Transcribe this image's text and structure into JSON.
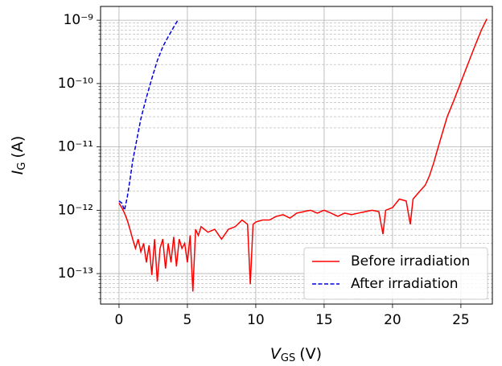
{
  "chart_data": {
    "type": "line",
    "x_label": {
      "symbol": "V",
      "subscript": "GS",
      "unit": "(V)"
    },
    "y_label": {
      "symbol": "I",
      "subscript": "G",
      "unit": "(A)"
    },
    "series": [
      {
        "name": "Before irradiation",
        "color": "#ff0000",
        "dash": "solid",
        "x": [
          0,
          0.2,
          0.4,
          0.6,
          0.8,
          1.0,
          1.2,
          1.4,
          1.6,
          1.8,
          2.0,
          2.2,
          2.4,
          2.6,
          2.8,
          3.0,
          3.2,
          3.4,
          3.6,
          3.8,
          4.0,
          4.2,
          4.4,
          4.6,
          4.8,
          5.0,
          5.2,
          5.4,
          5.6,
          5.8,
          6.0,
          6.5,
          7.0,
          7.5,
          8.0,
          8.5,
          9.0,
          9.4,
          9.6,
          9.8,
          10.0,
          10.5,
          11.0,
          11.5,
          12.0,
          12.5,
          13.0,
          13.5,
          14.0,
          14.5,
          15.0,
          15.5,
          16.0,
          16.5,
          17.0,
          17.5,
          18.0,
          18.5,
          19.0,
          19.3,
          19.5,
          20.0,
          20.5,
          21.0,
          21.3,
          21.5,
          22.0,
          22.4,
          22.7,
          23.0,
          23.5,
          24.0,
          24.5,
          25.0,
          25.5,
          26.0,
          26.5,
          26.9
        ],
        "values": [
          1.3e-12,
          1.1e-12,
          9e-13,
          7e-13,
          5e-13,
          3.5e-13,
          2.5e-13,
          3.5e-13,
          2.2e-13,
          3e-13,
          1.5e-13,
          2.8e-13,
          9.5e-14,
          3.5e-13,
          7.5e-14,
          2.5e-13,
          3.5e-13,
          1.2e-13,
          3e-13,
          1.5e-13,
          3.8e-13,
          1.3e-13,
          3.5e-13,
          2.5e-13,
          3e-13,
          1.5e-13,
          4e-13,
          5.2e-14,
          5e-13,
          4e-13,
          5.5e-13,
          4.5e-13,
          5e-13,
          3.5e-13,
          5e-13,
          5.5e-13,
          7e-13,
          6e-13,
          6.8e-14,
          6e-13,
          6.5e-13,
          7e-13,
          7e-13,
          8e-13,
          8.5e-13,
          7.5e-13,
          9e-13,
          9.5e-13,
          1e-12,
          9e-13,
          1e-12,
          9e-13,
          8e-13,
          9e-13,
          8.5e-13,
          9e-13,
          9.5e-13,
          1e-12,
          9.5e-13,
          4.2e-13,
          1e-12,
          1.1e-12,
          1.5e-12,
          1.4e-12,
          6e-13,
          1.5e-12,
          2e-12,
          2.5e-12,
          3.5e-12,
          5.5e-12,
          1.3e-11,
          3e-11,
          5.5e-11,
          1.05e-10,
          2e-10,
          3.8e-10,
          7e-10,
          1.05e-09
        ]
      },
      {
        "name": "After irradiation",
        "color": "#0000dd",
        "dash": "dashed",
        "x": [
          0,
          0.2,
          0.4,
          0.6,
          0.8,
          1.0,
          1.3,
          1.6,
          2.0,
          2.4,
          2.8,
          3.2,
          3.6,
          4.0,
          4.3
        ],
        "values": [
          1.4e-12,
          1.3e-12,
          1e-12,
          1.6e-12,
          3e-12,
          6e-12,
          1.3e-11,
          2.8e-11,
          6e-11,
          1.2e-10,
          2.3e-10,
          3.8e-10,
          5.5e-10,
          7.8e-10,
          1e-09
        ]
      }
    ],
    "xlim": [
      -1.35,
      27.3
    ],
    "xticks": [
      0,
      5,
      10,
      15,
      20,
      25
    ],
    "ylim": [
      3.3e-14,
      1.65e-09
    ],
    "ylog": true,
    "yticks": [
      {
        "value": 1e-13,
        "label": "10⁻¹³"
      },
      {
        "value": 1e-12,
        "label": "10⁻¹²"
      },
      {
        "value": 1e-11,
        "label": "10⁻¹¹"
      },
      {
        "value": 1e-10,
        "label": "10⁻¹⁰"
      },
      {
        "value": 1e-09,
        "label": "10⁻⁹"
      }
    ],
    "yminorticks": [
      4e-14,
      5e-14,
      6e-14,
      7e-14,
      8e-14,
      9e-14,
      2e-13,
      3e-13,
      4e-13,
      5e-13,
      6e-13,
      7e-13,
      8e-13,
      9e-13,
      2e-12,
      3e-12,
      4e-12,
      5e-12,
      6e-12,
      7e-12,
      8e-12,
      9e-12,
      2e-11,
      3e-11,
      4e-11,
      5e-11,
      6e-11,
      7e-11,
      8e-11,
      9e-11,
      2e-10,
      3e-10,
      4e-10,
      5e-10,
      6e-10,
      7e-10,
      8e-10,
      9e-10
    ],
    "grid": true,
    "legend": "lower right"
  }
}
